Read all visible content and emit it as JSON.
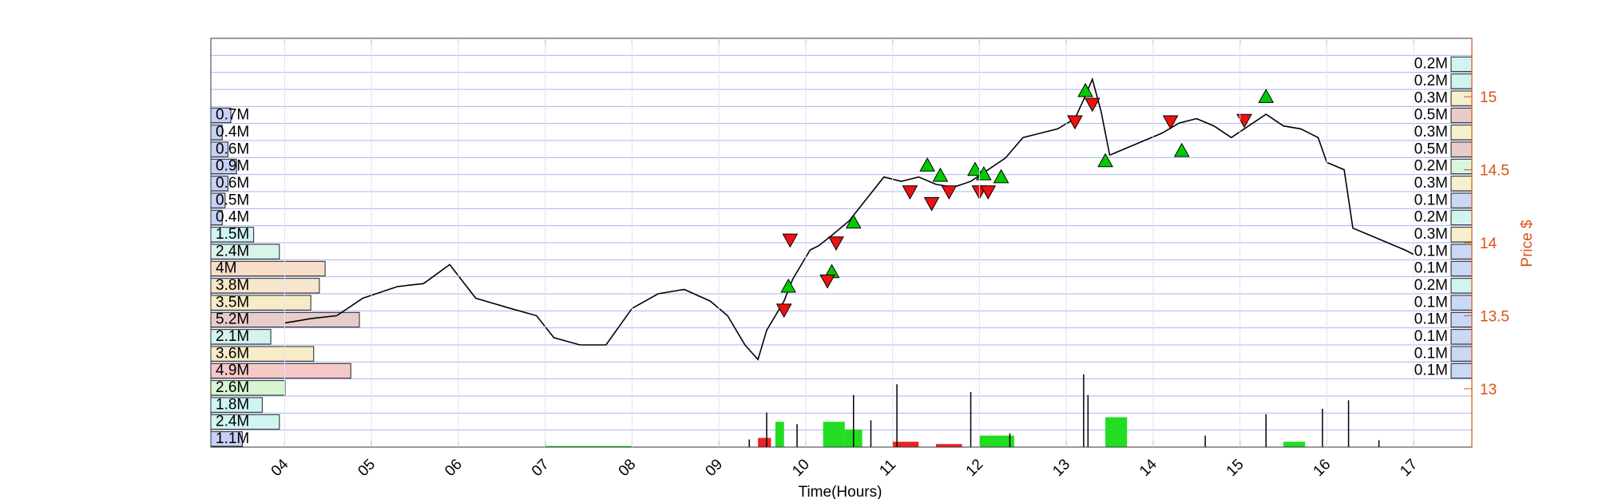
{
  "chart_data": {
    "type": "line",
    "xlabel": "Time(Hours)",
    "ylabel_right": "Price $",
    "x_ticks": [
      "04",
      "05",
      "06",
      "07",
      "08",
      "09",
      "10",
      "11",
      "12",
      "13",
      "14",
      "15",
      "16",
      "17"
    ],
    "y_right_ticks": [
      13,
      13.5,
      14,
      14.5,
      15
    ],
    "y_right_range": [
      12.6,
      15.4
    ],
    "x_range": [
      3.15,
      17.67
    ],
    "grid": "horizontal-blue",
    "colors": {
      "price": "#000000",
      "buy_marker": "#00cc00",
      "sell_marker": "#ee1111",
      "right_axis": "#d95319",
      "grid": "#aab4f0",
      "volume_buy": "#22dd22",
      "volume_sell": "#ee2222"
    },
    "price_series": {
      "name": "",
      "x": [
        4.0,
        4.3,
        4.6,
        4.9,
        5.3,
        5.6,
        5.9,
        6.2,
        6.6,
        6.9,
        7.1,
        7.4,
        7.7,
        8.0,
        8.3,
        8.6,
        8.9,
        9.1,
        9.3,
        9.45,
        9.55,
        9.65,
        9.75,
        9.85,
        9.95,
        10.05,
        10.15,
        10.3,
        10.5,
        10.7,
        10.9,
        11.1,
        11.3,
        11.5,
        11.7,
        11.9,
        12.1,
        12.3,
        12.5,
        12.7,
        12.9,
        13.1,
        13.2,
        13.3,
        13.4,
        13.5,
        13.7,
        13.9,
        14.1,
        14.3,
        14.5,
        14.7,
        14.9,
        15.1,
        15.3,
        15.5,
        15.7,
        15.9,
        16.0,
        16.2,
        16.3,
        16.5,
        16.7,
        16.9,
        17.0
      ],
      "values": [
        13.45,
        13.48,
        13.5,
        13.62,
        13.7,
        13.72,
        13.85,
        13.62,
        13.55,
        13.5,
        13.35,
        13.3,
        13.3,
        13.55,
        13.65,
        13.68,
        13.6,
        13.5,
        13.3,
        13.2,
        13.4,
        13.5,
        13.6,
        13.75,
        13.85,
        13.95,
        13.98,
        14.05,
        14.15,
        14.3,
        14.45,
        14.42,
        14.45,
        14.4,
        14.38,
        14.42,
        14.5,
        14.58,
        14.72,
        14.75,
        14.78,
        14.85,
        14.98,
        15.12,
        14.9,
        14.6,
        14.65,
        14.7,
        14.75,
        14.82,
        14.85,
        14.8,
        14.72,
        14.8,
        14.88,
        14.8,
        14.78,
        14.72,
        14.55,
        14.5,
        14.1,
        14.05,
        14.0,
        13.95,
        13.92
      ]
    },
    "buy_signals": {
      "x": [
        9.8,
        10.3,
        10.55,
        11.4,
        11.55,
        11.95,
        12.05,
        12.25,
        13.22,
        13.45,
        14.33,
        15.3
      ],
      "y": [
        13.7,
        13.8,
        14.14,
        14.53,
        14.46,
        14.5,
        14.47,
        14.45,
        15.04,
        14.56,
        14.63,
        15.0
      ]
    },
    "sell_signals": {
      "x": [
        9.75,
        9.82,
        10.25,
        10.35,
        11.2,
        11.45,
        11.65,
        12.0,
        12.1,
        13.1,
        13.3,
        14.2,
        15.05
      ],
      "y": [
        13.54,
        14.02,
        13.74,
        14.0,
        14.35,
        14.27,
        14.35,
        14.35,
        14.35,
        14.83,
        14.95,
        14.83,
        14.84
      ]
    },
    "left_profile": {
      "labels": [
        "1.1M",
        "2.4M",
        "1.8M",
        "2.6M",
        "4.9M",
        "3.6M",
        "2.1M",
        "5.2M",
        "3.5M",
        "3.8M",
        "4M",
        "2.4M",
        "1.5M",
        "0.4M",
        "0.5M",
        "0.6M",
        "0.9M",
        "0.6M",
        "0.4M",
        "0.7M"
      ],
      "values": [
        1.1,
        2.4,
        1.8,
        2.6,
        4.9,
        3.6,
        2.1,
        5.2,
        3.5,
        3.8,
        4.0,
        2.4,
        1.5,
        0.4,
        0.5,
        0.6,
        0.9,
        0.6,
        0.4,
        0.7
      ],
      "colors": [
        "#c8d0f5",
        "#d0f5f0",
        "#cff5f2",
        "#d8f5d2",
        "#f5c8c8",
        "#f7ecc8",
        "#d4f3ef",
        "#e8cccc",
        "#f7ecc8",
        "#f5e6cc",
        "#f7dec8",
        "#d8f5ea",
        "#cff5f2",
        "#c8d0f5",
        "#c8d0f5",
        "#c8d0f5",
        "#c8d0f5",
        "#c8d0f5",
        "#c8d0f5",
        "#c8d0f5"
      ]
    },
    "right_profile": {
      "labels": [
        "0.1M",
        "0.1M",
        "0.1M",
        "0.1M",
        "0.1M",
        "0.2M",
        "0.1M",
        "0.1M",
        "0.3M",
        "0.2M",
        "0.1M",
        "0.3M",
        "0.2M",
        "0.5M",
        "0.3M",
        "0.5M",
        "0.3M",
        "0.2M",
        "0.2M"
      ],
      "values": [
        0.1,
        0.1,
        0.1,
        0.1,
        0.1,
        0.2,
        0.1,
        0.1,
        0.3,
        0.2,
        0.1,
        0.3,
        0.2,
        0.5,
        0.3,
        0.5,
        0.3,
        0.2,
        0.2
      ],
      "colors": [
        "#c8d8f5",
        "#c8d8f5",
        "#c8d8f5",
        "#c8d8f5",
        "#c8d8f5",
        "#d0f5f0",
        "#c8d8f5",
        "#c8d8f5",
        "#f7f0cc",
        "#d0f5f0",
        "#c8d8f5",
        "#f7f0cc",
        "#d8f5e0",
        "#e8cccc",
        "#f7f0cc",
        "#e8cccc",
        "#f7f0cc",
        "#d0f5f0",
        "#d0f5f0"
      ]
    },
    "volume_blocks": [
      {
        "x0": 7.0,
        "x1": 8.0,
        "value": 0.15,
        "side": "buy"
      },
      {
        "x0": 9.65,
        "x1": 9.75,
        "value": 3.3,
        "side": "buy"
      },
      {
        "x0": 10.2,
        "x1": 10.45,
        "value": 3.3,
        "side": "buy"
      },
      {
        "x0": 10.45,
        "x1": 10.65,
        "value": 2.3,
        "side": "buy"
      },
      {
        "x0": 12.0,
        "x1": 12.4,
        "value": 1.5,
        "side": "buy"
      },
      {
        "x0": 13.45,
        "x1": 13.7,
        "value": 3.9,
        "side": "buy"
      },
      {
        "x0": 15.5,
        "x1": 15.75,
        "value": 0.7,
        "side": "buy"
      },
      {
        "x0": 9.45,
        "x1": 9.6,
        "value": 1.2,
        "side": "sell"
      },
      {
        "x0": 11.0,
        "x1": 11.3,
        "value": 0.7,
        "side": "sell"
      },
      {
        "x0": 11.5,
        "x1": 11.8,
        "value": 0.4,
        "side": "sell"
      }
    ],
    "volume_spikes": [
      {
        "x": 9.35,
        "value": 1.0
      },
      {
        "x": 9.55,
        "value": 4.5
      },
      {
        "x": 9.9,
        "value": 3.0
      },
      {
        "x": 10.55,
        "value": 6.8
      },
      {
        "x": 10.75,
        "value": 3.5
      },
      {
        "x": 11.05,
        "value": 8.2
      },
      {
        "x": 11.9,
        "value": 7.2
      },
      {
        "x": 12.35,
        "value": 1.8
      },
      {
        "x": 13.2,
        "value": 9.5
      },
      {
        "x": 13.25,
        "value": 6.8
      },
      {
        "x": 14.6,
        "value": 1.5
      },
      {
        "x": 15.3,
        "value": 4.3
      },
      {
        "x": 15.95,
        "value": 5.0
      },
      {
        "x": 16.25,
        "value": 6.1
      },
      {
        "x": 16.6,
        "value": 0.9
      }
    ],
    "volume_max": 25
  }
}
